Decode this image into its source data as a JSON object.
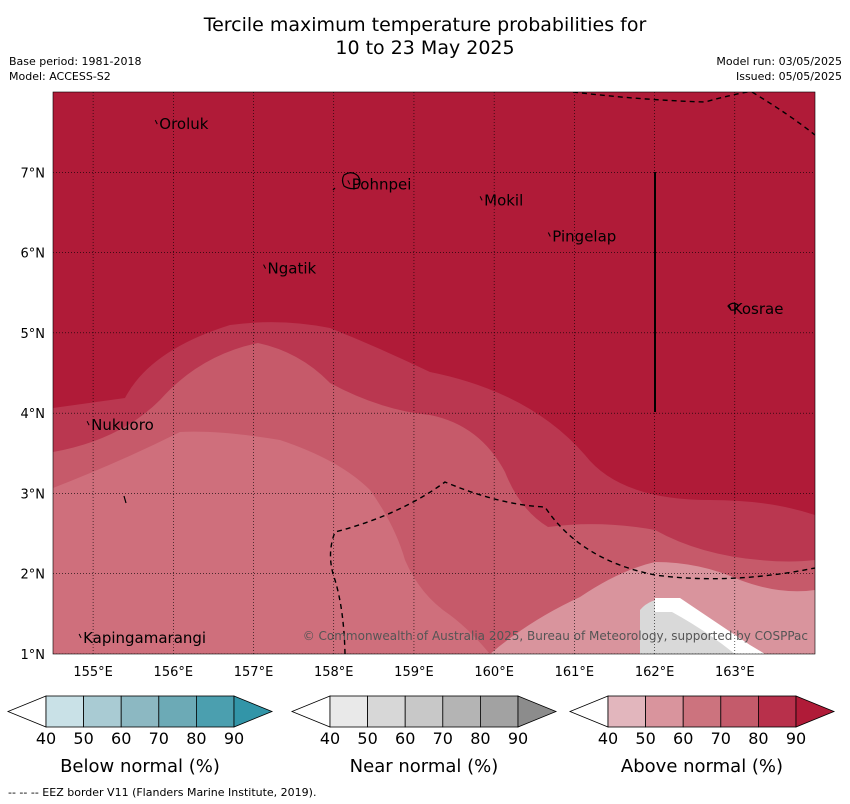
{
  "title_line1": "Tercile maximum temperature probabilities for",
  "title_line2": "10 to 23 May 2025",
  "base_period": "Base period: 1981-2018",
  "model": "Model: ACCESS-S2",
  "model_run": "Model run: 03/05/2025",
  "issued": "Issued: 05/05/2025",
  "copyright": "© Commonwealth of Australia 2025, Bureau of Meteorology, supported by COSPPac",
  "map": {
    "lon_range": [
      154.5,
      164.0
    ],
    "lat_range": [
      1.0,
      8.0
    ],
    "lon_ticks": [
      "155°E",
      "156°E",
      "157°E",
      "158°E",
      "159°E",
      "160°E",
      "161°E",
      "162°E",
      "163°E"
    ],
    "lat_ticks": [
      "1°N",
      "2°N",
      "3°N",
      "4°N",
      "5°N",
      "6°N",
      "7°N"
    ],
    "places": [
      {
        "name": "Oroluk",
        "lon": 155.8,
        "lat": 7.6
      },
      {
        "name": "Pohnpei",
        "lon": 158.2,
        "lat": 6.85
      },
      {
        "name": "Mokil",
        "lon": 159.85,
        "lat": 6.65
      },
      {
        "name": "Pingelap",
        "lon": 160.7,
        "lat": 6.2
      },
      {
        "name": "Ngatik",
        "lon": 157.15,
        "lat": 5.8
      },
      {
        "name": "Kosrae",
        "lon": 162.95,
        "lat": 5.3
      },
      {
        "name": "Nukuoro",
        "lon": 154.95,
        "lat": 3.85
      },
      {
        "name": "Kapingamarangi",
        "lon": 154.85,
        "lat": 1.2
      }
    ],
    "colors": {
      "above_90": "#b01b38",
      "above_80": "#ba3750",
      "above_70": "#c65a6a",
      "above_60": "#cf6f7c",
      "above_50": "#d9949d",
      "near_40": "#d9d9d9",
      "white": "#ffffff"
    }
  },
  "colorbars": [
    {
      "label": "Below normal (%)",
      "ticks": [
        "40",
        "50",
        "60",
        "70",
        "80",
        "90"
      ],
      "colors": [
        "#c9e1e7",
        "#a9cbd3",
        "#8cb8c2",
        "#6caab6",
        "#4b9faf",
        "#3295a8"
      ]
    },
    {
      "label": "Near normal (%)",
      "ticks": [
        "40",
        "50",
        "60",
        "70",
        "80",
        "90"
      ],
      "colors": [
        "#e9e9e9",
        "#d7d7d7",
        "#c8c8c8",
        "#b4b4b4",
        "#a2a2a2",
        "#8c8c8c"
      ]
    },
    {
      "label": "Above normal (%)",
      "ticks": [
        "40",
        "50",
        "60",
        "70",
        "80",
        "90"
      ],
      "colors": [
        "#e2b6bd",
        "#d9949d",
        "#cc737e",
        "#c45b6b",
        "#b8304b",
        "#b01b38"
      ]
    }
  ],
  "footnote": "--  --  -- EEZ border V11 (Flanders Marine Institute, 2019)."
}
